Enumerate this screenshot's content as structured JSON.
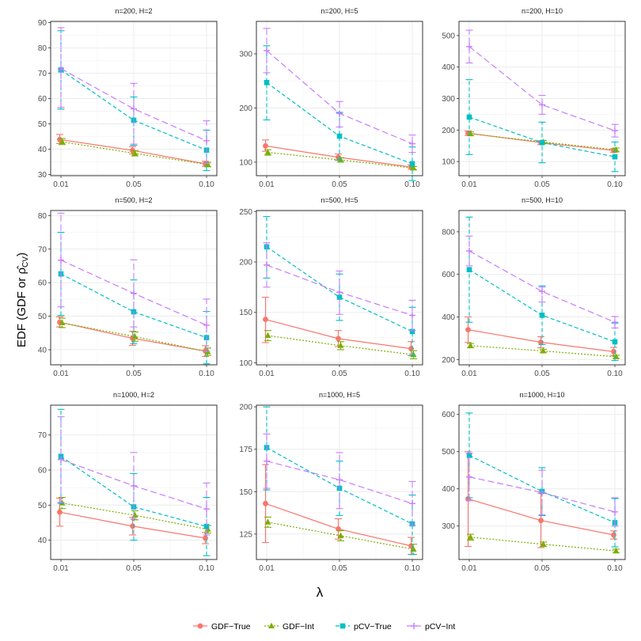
{
  "figure": {
    "ylabel_text": "EDF (GDF or ρ̂",
    "ylabel_sub": "CV",
    "ylabel_close": ")",
    "xlabel": "λ"
  },
  "legend": [
    {
      "name": "GDF−True",
      "color": "#F8766D",
      "marker": "circle",
      "dash": "solid"
    },
    {
      "name": "GDF−Int",
      "color": "#7CAE00",
      "marker": "triangle",
      "dash": "dotted"
    },
    {
      "name": "pCV−True",
      "color": "#00BFC4",
      "marker": "square",
      "dash": "dashed"
    },
    {
      "name": "pCV−Int",
      "color": "#C77CFF",
      "marker": "plus",
      "dash": "longdash"
    }
  ],
  "chart_data": [
    {
      "type": "line",
      "title": "n=200, H=2",
      "categories": [
        "0.01",
        "0.05",
        "0.10"
      ],
      "yticks": [
        30,
        40,
        50,
        60,
        70,
        80,
        90
      ],
      "ylim": [
        29.5,
        90.5
      ],
      "series": [
        {
          "name": "GDF−True",
          "values": [
            43.8,
            39.5,
            34.2
          ],
          "lower": [
            42.2,
            38.0,
            33.2
          ],
          "upper": [
            45.8,
            41.0,
            35.2
          ]
        },
        {
          "name": "GDF−Int",
          "values": [
            42.9,
            38.3,
            33.9
          ],
          "lower": [
            41.8,
            37.3,
            33.0
          ],
          "upper": [
            44.2,
            39.4,
            34.8
          ]
        },
        {
          "name": "pCV−True",
          "values": [
            71.3,
            51.4,
            39.6
          ],
          "lower": [
            55.8,
            41.5,
            31.5
          ],
          "upper": [
            86.8,
            60.6,
            47.5
          ]
        },
        {
          "name": "pCV−Int",
          "values": [
            71.8,
            55.9,
            43.3
          ],
          "lower": [
            56.5,
            42.0,
            34.3
          ],
          "upper": [
            88.0,
            66.0,
            51.2
          ]
        }
      ]
    },
    {
      "type": "line",
      "title": "n=200, H=5",
      "categories": [
        "0.01",
        "0.05",
        "0.10"
      ],
      "yticks": [
        100,
        200,
        300
      ],
      "ylim": [
        75,
        360
      ],
      "series": [
        {
          "name": "GDF−True",
          "values": [
            130,
            109,
            91
          ],
          "lower": [
            120,
            103,
            87
          ],
          "upper": [
            141,
            115,
            95
          ]
        },
        {
          "name": "GDF−Int",
          "values": [
            118,
            104,
            89
          ],
          "lower": [
            113,
            100,
            86
          ],
          "upper": [
            123,
            108,
            92
          ]
        },
        {
          "name": "pCV−True",
          "values": [
            247,
            148,
            97
          ],
          "lower": [
            178,
            104,
            66
          ],
          "upper": [
            315,
            192,
            128
          ]
        },
        {
          "name": "pCV−Int",
          "values": [
            306,
            190,
            134
          ],
          "lower": [
            265,
            165,
            118
          ],
          "upper": [
            347,
            212,
            150
          ]
        }
      ]
    },
    {
      "type": "line",
      "title": "n=200, H=10",
      "categories": [
        "0.01",
        "0.05",
        "0.10"
      ],
      "yticks": [
        100,
        200,
        300,
        400,
        500
      ],
      "ylim": [
        55,
        545
      ],
      "series": [
        {
          "name": "GDF−True",
          "values": [
            190,
            160,
            135
          ],
          "lower": [
            183,
            154,
            129
          ],
          "upper": [
            197,
            166,
            141
          ]
        },
        {
          "name": "GDF−Int",
          "values": [
            188,
            162,
            137
          ],
          "lower": [
            182,
            157,
            131
          ],
          "upper": [
            194,
            167,
            143
          ]
        },
        {
          "name": "pCV−True",
          "values": [
            241,
            160,
            115
          ],
          "lower": [
            122,
            96,
            68
          ],
          "upper": [
            360,
            225,
            162
          ]
        },
        {
          "name": "pCV−Int",
          "values": [
            465,
            280,
            198
          ],
          "lower": [
            413,
            250,
            178
          ],
          "upper": [
            517,
            310,
            218
          ]
        }
      ]
    },
    {
      "type": "line",
      "title": "n=500, H=2",
      "categories": [
        "0.01",
        "0.05",
        "0.10"
      ],
      "yticks": [
        40,
        50,
        60,
        70,
        80
      ],
      "ylim": [
        35.5,
        81.5
      ],
      "series": [
        {
          "name": "GDF−True",
          "values": [
            48.2,
            43.4,
            39.6
          ],
          "lower": [
            46.8,
            41.3,
            38.0
          ],
          "upper": [
            49.8,
            45.5,
            41.2
          ]
        },
        {
          "name": "GDF−Int",
          "values": [
            48.0,
            43.9,
            39.4
          ],
          "lower": [
            46.6,
            42.5,
            38.3
          ],
          "upper": [
            49.4,
            45.3,
            40.5
          ]
        },
        {
          "name": "pCV−True",
          "values": [
            62.6,
            51.3,
            43.6
          ],
          "lower": [
            50.2,
            41.8,
            35.8
          ],
          "upper": [
            75.0,
            60.8,
            51.4
          ]
        },
        {
          "name": "pCV−Int",
          "values": [
            66.7,
            56.8,
            47.3
          ],
          "lower": [
            52.8,
            46.8,
            39.5
          ],
          "upper": [
            80.7,
            66.8,
            55.1
          ]
        }
      ]
    },
    {
      "type": "line",
      "title": "n=500, H=5",
      "categories": [
        "0.01",
        "0.05",
        "0.10"
      ],
      "yticks": [
        100,
        150,
        200,
        250
      ],
      "ylim": [
        98,
        251
      ],
      "series": [
        {
          "name": "GDF−True",
          "values": [
            143,
            124,
            114
          ],
          "lower": [
            120,
            116,
            107
          ],
          "upper": [
            165,
            132,
            121
          ]
        },
        {
          "name": "GDF−Int",
          "values": [
            127,
            117,
            108
          ],
          "lower": [
            122,
            113,
            104
          ],
          "upper": [
            132,
            121,
            112
          ]
        },
        {
          "name": "pCV−True",
          "values": [
            215,
            165,
            131
          ],
          "lower": [
            184,
            142,
            107
          ],
          "upper": [
            245,
            188,
            155
          ]
        },
        {
          "name": "pCV−Int",
          "values": [
            197,
            170,
            147
          ],
          "lower": [
            175,
            148,
            132
          ],
          "upper": [
            219,
            191,
            162
          ]
        }
      ]
    },
    {
      "type": "line",
      "title": "n=500, H=10",
      "categories": [
        "0.01",
        "0.05",
        "0.10"
      ],
      "yticks": [
        200,
        400,
        600,
        800
      ],
      "ylim": [
        175,
        900
      ],
      "series": [
        {
          "name": "GDF−True",
          "values": [
            340,
            281,
            237
          ],
          "lower": [
            280,
            255,
            217
          ],
          "upper": [
            400,
            307,
            257
          ]
        },
        {
          "name": "GDF−Int",
          "values": [
            265,
            240,
            213
          ],
          "lower": [
            255,
            232,
            206
          ],
          "upper": [
            275,
            248,
            220
          ]
        },
        {
          "name": "pCV−True",
          "values": [
            622,
            408,
            283
          ],
          "lower": [
            375,
            270,
            195
          ],
          "upper": [
            869,
            546,
            371
          ]
        },
        {
          "name": "pCV−Int",
          "values": [
            710,
            520,
            375
          ],
          "lower": [
            640,
            470,
            348
          ],
          "upper": [
            780,
            540,
            402
          ]
        }
      ]
    },
    {
      "type": "line",
      "title": "n=1000, H=2",
      "categories": [
        "0.01",
        "0.05",
        "0.10"
      ],
      "yticks": [
        40,
        50,
        60,
        70
      ],
      "ylim": [
        34.5,
        78.5
      ],
      "series": [
        {
          "name": "GDF−True",
          "values": [
            48.0,
            44.0,
            40.6
          ],
          "lower": [
            44.0,
            41.5,
            39.0
          ],
          "upper": [
            52.0,
            46.5,
            42.2
          ]
        },
        {
          "name": "GDF−Int",
          "values": [
            50.6,
            47.1,
            43.1
          ],
          "lower": [
            49.0,
            45.8,
            42.0
          ],
          "upper": [
            52.2,
            48.4,
            44.2
          ]
        },
        {
          "name": "pCV−True",
          "values": [
            63.9,
            49.5,
            43.9
          ],
          "lower": [
            50.5,
            40.0,
            35.6
          ],
          "upper": [
            77.3,
            59.0,
            52.2
          ]
        },
        {
          "name": "pCV−Int",
          "values": [
            63.0,
            55.5,
            48.9
          ],
          "lower": [
            50.8,
            46.0,
            41.5
          ],
          "upper": [
            75.2,
            65.0,
            56.3
          ]
        }
      ]
    },
    {
      "type": "line",
      "title": "n=1000, H=5",
      "categories": [
        "0.01",
        "0.05",
        "0.10"
      ],
      "yticks": [
        125,
        150,
        175,
        200
      ],
      "ylim": [
        110,
        201
      ],
      "series": [
        {
          "name": "GDF−True",
          "values": [
            143,
            128,
            118
          ],
          "lower": [
            120,
            122,
            113
          ],
          "upper": [
            166,
            134,
            123
          ]
        },
        {
          "name": "GDF−Int",
          "values": [
            132,
            124,
            116
          ],
          "lower": [
            129,
            121,
            113
          ],
          "upper": [
            135,
            127,
            119
          ]
        },
        {
          "name": "pCV−True",
          "values": [
            176,
            152,
            131
          ],
          "lower": [
            151,
            136,
            113
          ],
          "upper": [
            200,
            168,
            148
          ]
        },
        {
          "name": "pCV−Int",
          "values": [
            168,
            157,
            143
          ],
          "lower": [
            152,
            140,
            130
          ],
          "upper": [
            184,
            173,
            156
          ]
        }
      ]
    },
    {
      "type": "line",
      "title": "n=1000, H=10",
      "categories": [
        "0.01",
        "0.05",
        "0.10"
      ],
      "yticks": [
        300,
        400,
        500,
        600
      ],
      "ylim": [
        210,
        625
      ],
      "series": [
        {
          "name": "GDF−True",
          "values": [
            373,
            315,
            276
          ],
          "lower": [
            245,
            242,
            265
          ],
          "upper": [
            500,
            388,
            287
          ]
        },
        {
          "name": "GDF−Int",
          "values": [
            270,
            251,
            233
          ],
          "lower": [
            262,
            245,
            228
          ],
          "upper": [
            278,
            257,
            238
          ]
        },
        {
          "name": "pCV−True",
          "values": [
            490,
            393,
            309
          ],
          "lower": [
            376,
            328,
            244
          ],
          "upper": [
            604,
            457,
            374
          ]
        },
        {
          "name": "pCV−Int",
          "values": [
            432,
            390,
            338
          ],
          "lower": [
            368,
            330,
            300
          ],
          "upper": [
            496,
            450,
            376
          ]
        }
      ]
    }
  ]
}
